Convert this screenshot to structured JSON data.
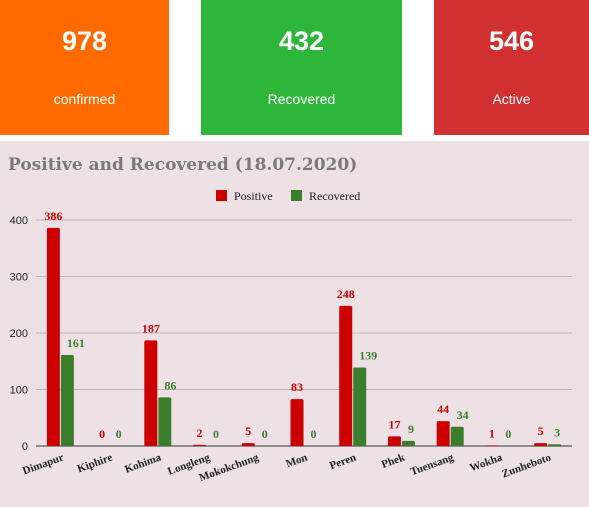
{
  "stats": {
    "confirmed": {
      "value": "978",
      "label": "confirmed",
      "color": "#ff6a00"
    },
    "recovered": {
      "value": "432",
      "label": "Recovered",
      "color": "#2db63a"
    },
    "active": {
      "value": "546",
      "label": "Active",
      "color": "#d23030"
    }
  },
  "chart_data": {
    "type": "bar",
    "title": "Positive and Recovered (18.07.2020)",
    "categories": [
      "Dimapur",
      "Kiphire",
      "Kohima",
      "Longleng",
      "Mokokchung",
      "Mon",
      "Peren",
      "Phek",
      "Tuensang",
      "Wokha",
      "Zunheboto"
    ],
    "series": [
      {
        "name": "Positive",
        "color": "#cc0000",
        "values": [
          386,
          0,
          187,
          2,
          5,
          83,
          248,
          17,
          44,
          1,
          5
        ]
      },
      {
        "name": "Recovered",
        "color": "#3a7d2c",
        "values": [
          161,
          0,
          86,
          0,
          0,
          0,
          139,
          9,
          34,
          0,
          3
        ]
      }
    ],
    "ylim": [
      0,
      400
    ],
    "yticks": [
      0,
      100,
      200,
      300,
      400
    ],
    "grid": true,
    "legend": "top-center",
    "data_labels": true
  }
}
